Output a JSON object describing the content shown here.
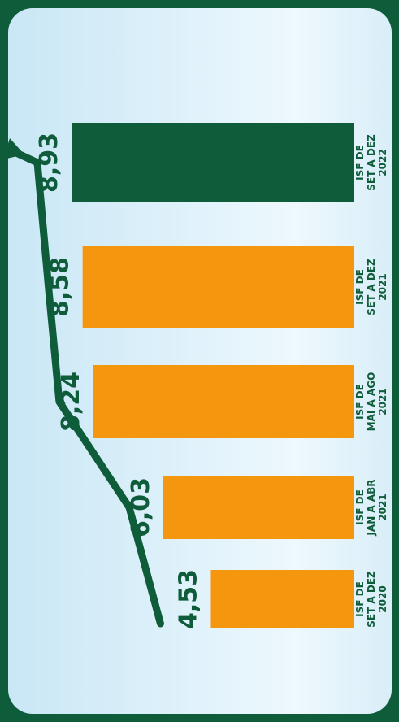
{
  "colors": {
    "frame": "#0f5c3b",
    "bar_highlight": "#0f5c3b",
    "bar": "#f5960f",
    "text": "#0f5c3b",
    "arrow": "#0f5c3b"
  },
  "chart_data": {
    "type": "bar",
    "orientation": "horizontal",
    "title": "",
    "xlabel": "",
    "ylabel": "",
    "categories": [
      [
        "ISF DE",
        "SET A DEZ",
        "2022"
      ],
      [
        "ISF DE",
        "SET A DEZ",
        "2021"
      ],
      [
        "ISF DE",
        "MAI A AGO",
        "2021"
      ],
      [
        "ISF DE",
        "JAN A ABR",
        "2021"
      ],
      [
        "ISF DE",
        "SET A DEZ",
        "2020"
      ]
    ],
    "values": [
      8.93,
      8.58,
      8.24,
      6.03,
      4.53
    ],
    "value_labels": [
      "8,93",
      "8,58",
      "8,24",
      "6,03",
      "4,53"
    ],
    "highlight_index": 0,
    "trend_arrow": true,
    "xlim": [
      0,
      10
    ],
    "grid": false,
    "legend": "none"
  }
}
